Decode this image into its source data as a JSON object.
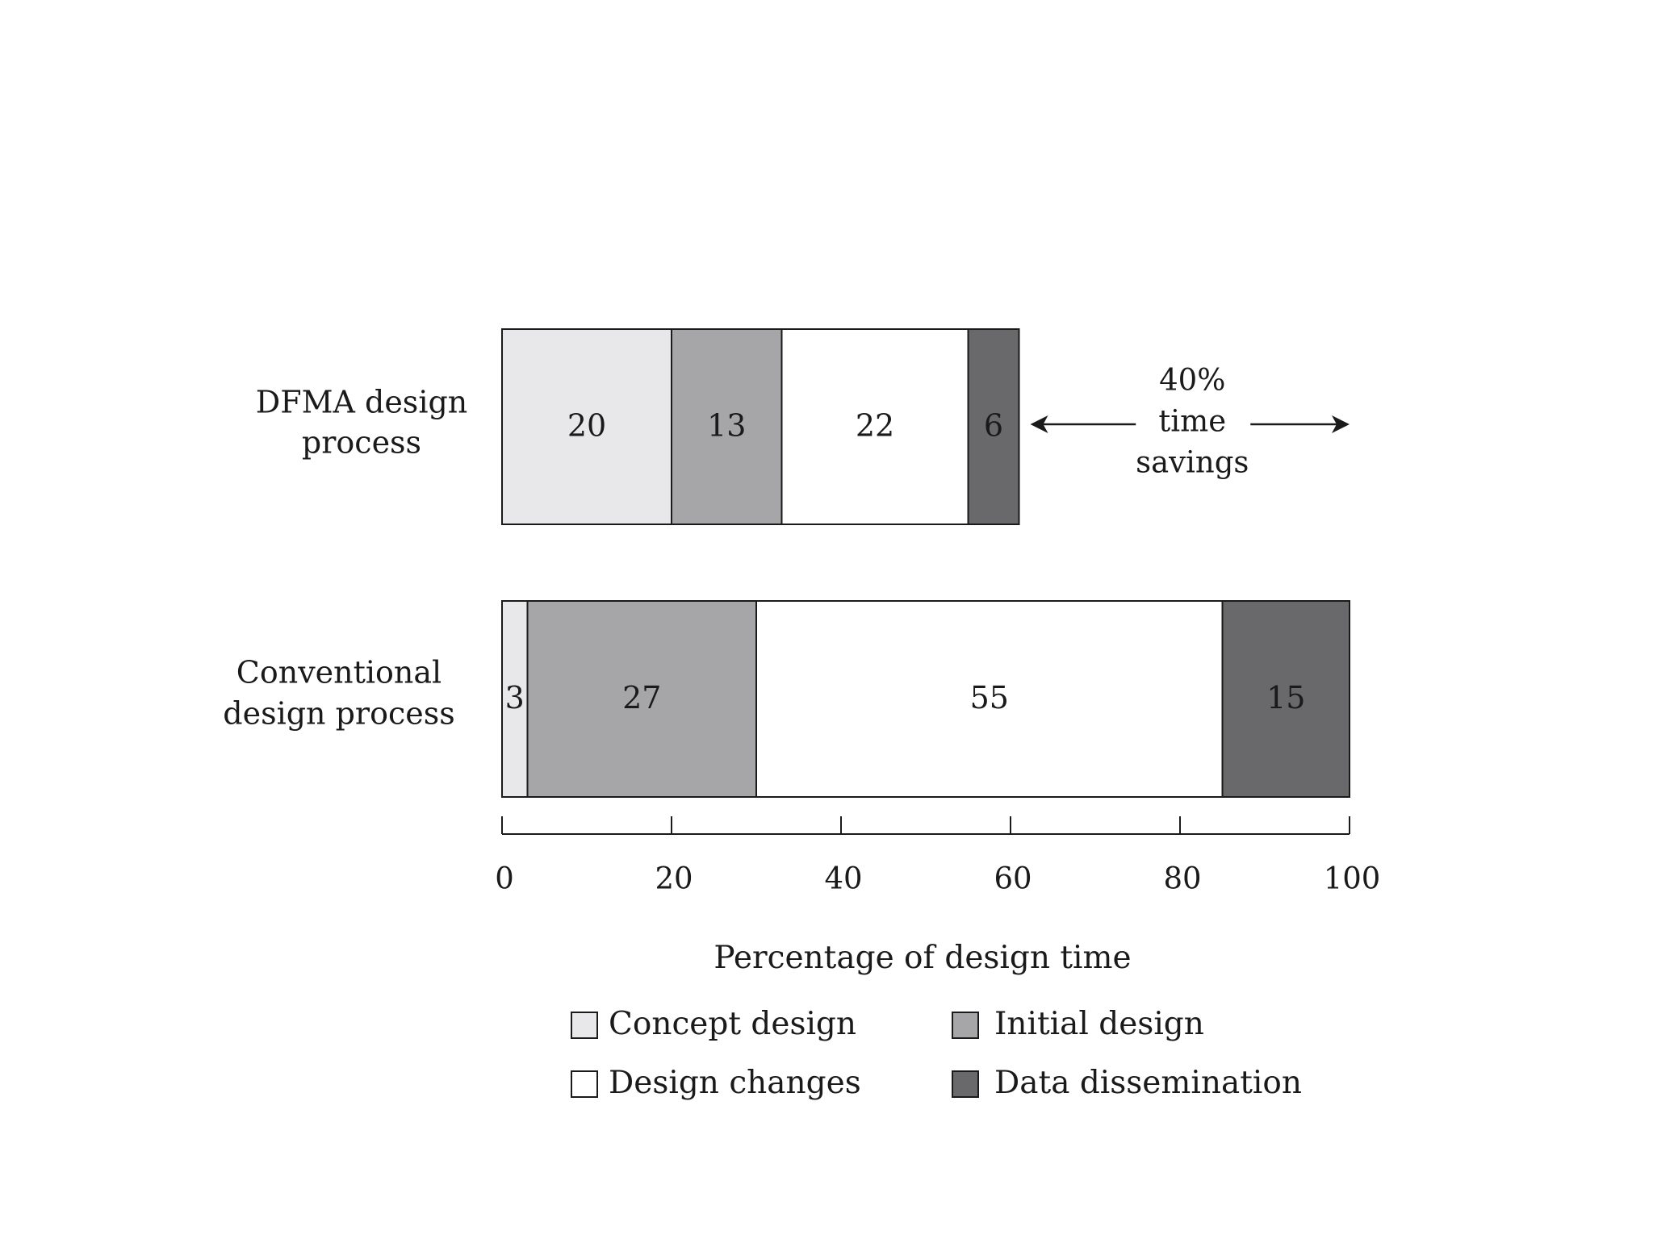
{
  "chart_data": {
    "type": "bar",
    "orientation": "horizontal",
    "stacked": true,
    "categories": [
      [
        "DFMA design",
        "process"
      ],
      [
        "Conventional",
        "design process"
      ]
    ],
    "series": [
      {
        "name": "Concept design",
        "color": "#e8e8ea",
        "values": [
          20,
          3
        ]
      },
      {
        "name": "Initial design",
        "color": "#a6a5a7",
        "values": [
          13,
          27
        ]
      },
      {
        "name": "Design changes",
        "color": "#ffffff",
        "values": [
          22,
          55
        ]
      },
      {
        "name": "Data dissemination",
        "color": "#69686a",
        "values": [
          6,
          15
        ]
      }
    ],
    "xlabel": "Percentage of design time",
    "xlim": [
      0,
      100
    ],
    "xticks": [
      "0",
      "20",
      "40",
      "60",
      "80",
      "100"
    ],
    "annotation": [
      "40%",
      "time",
      "savings"
    ],
    "legend": {
      "position": "bottom",
      "columns": 2
    },
    "grid": false
  }
}
